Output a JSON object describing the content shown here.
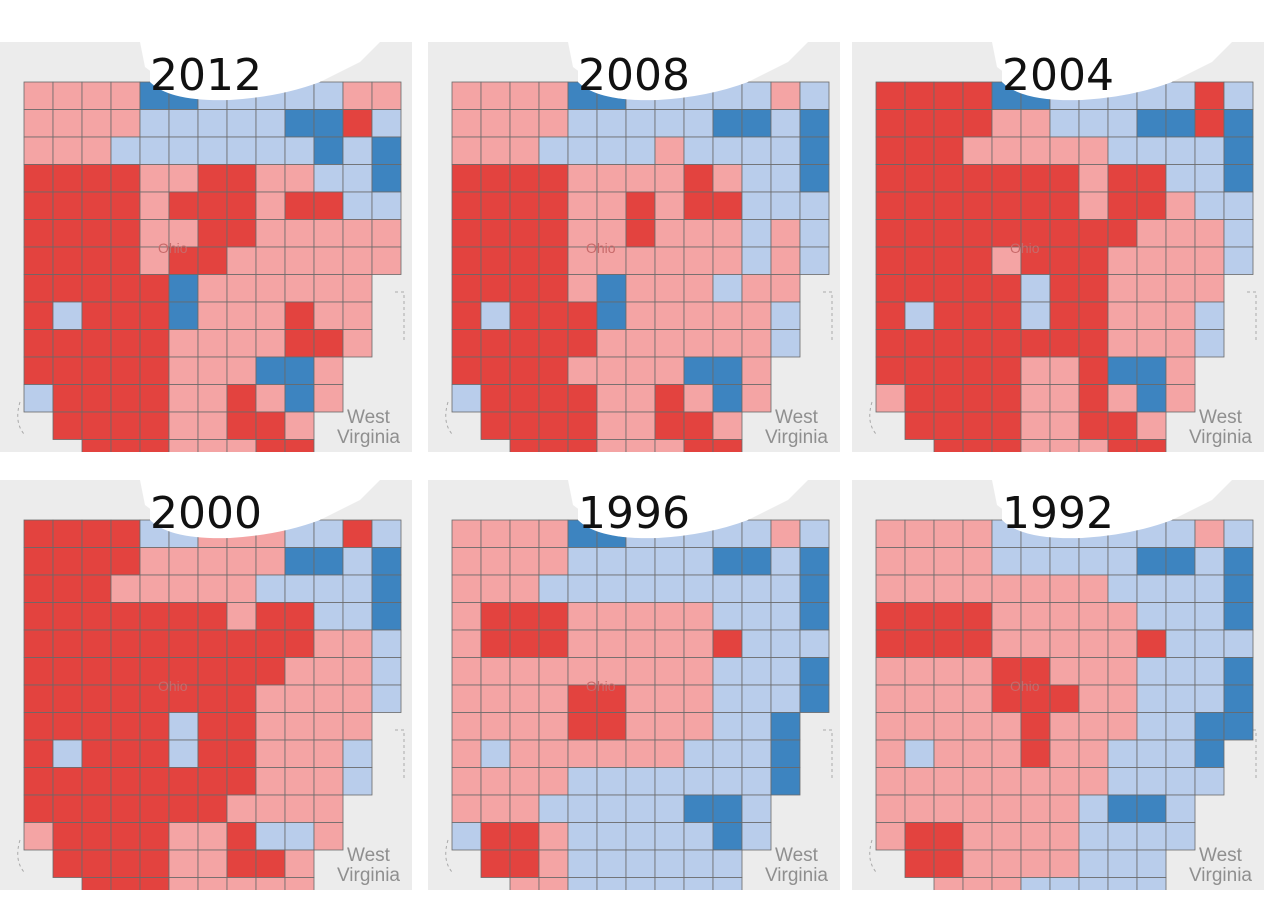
{
  "title": "",
  "legend_colors": {
    "strong_rep": "#e3433f",
    "lean_rep": "#f4a4a4",
    "lean_dem": "#b9cdeb",
    "strong_dem": "#3d84c0"
  },
  "maps": [
    {
      "year": "2012",
      "state_label": "Ohio",
      "neighbor_label": [
        "West",
        "Virginia"
      ],
      "grid": [
        "PPPPBBLLLLLPP",
        "PPPPLLLLLBBRL",
        "PPPLLLLLLLBLB",
        "RRRRPPRRPPLLB",
        "RRRRPRRRPRRLL",
        "RRRRPPRRPPPPP",
        "RRRRPRRPPPPPP",
        "RRRRRBPPPPPP.",
        "RLRRRBPPPRPP.",
        "RRRRRPPPPRRP.",
        "RRRRRPPPBBP..",
        "LRRRRPPRPBP..",
        ".RRRRPPRRP...",
        "..RRRPPPRR..."
      ]
    },
    {
      "year": "2008",
      "state_label": "Ohio",
      "neighbor_label": [
        "West",
        "Virginia"
      ],
      "grid": [
        "PPPPBBLLLLLPL",
        "PPPPLLLLLBBLB",
        "PPPLLLLPLLLLB",
        "RRRRPPPPRPLLB",
        "RRRRPPRPRRLLL",
        "RRRRPPRPPPLPL",
        "RRRRPPPPPPLPL",
        "RRRRPBPPPLPP.",
        "RLRRRBPPPPPL.",
        "RRRRRPPPPPPL.",
        "RRRRPPPPBBP..",
        "LRRRRPPRPBP..",
        ".RRRRPPRRP...",
        "..RRRPPPRR..."
      ]
    },
    {
      "year": "2004",
      "state_label": "Ohio",
      "neighbor_label": [
        "West",
        "Virginia"
      ],
      "grid": [
        "RRRRBBLLLLLRL",
        "RRRRPPLLLBBRB",
        "RRRPPPPPLLLLB",
        "RRRRRRRPRRLLB",
        "RRRRRRRPRRPLL",
        "RRRRRRRRRPPPL",
        "RRRRPRRRPPPPL",
        "RRRRRLRRPPPP.",
        "RLRRRLRRPPPL.",
        "RRRRRRRRPPPL.",
        "RRRRRPPRBBP..",
        "PRRRRPPRPBP..",
        ".RRRRPPRRP...",
        "..RRRPPPRR..."
      ]
    },
    {
      "year": "2000",
      "state_label": "Ohio",
      "neighbor_label": [
        "West",
        "Virginia"
      ],
      "grid": [
        "RRRRLLPPPLLRL",
        "RRRRPPPPPBBLB",
        "RRRPPPPPLLLLB",
        "RRRRRRRPRRLLB",
        "RRRRRRRRRRPPL",
        "RRRRRRRRRPPPL",
        "RRRRRRRRPPPPL",
        "RRRRRLRRPPPP.",
        "RLRRRLRRPPPL.",
        "RRRRRRRRPPPL.",
        "RRRRRRRPPPP..",
        "PRRRRPPRLLP..",
        ".RRRRPPRRP...",
        "..RRRPPPPP..."
      ]
    },
    {
      "year": "1996",
      "state_label": "Ohio",
      "neighbor_label": [
        "West",
        "Virginia"
      ],
      "grid": [
        "PPPPBBLLLLLPL",
        "PPPPLLLLLBBLB",
        "PPPLLLLLLLLLB",
        "PRRRPPPPPLLLB",
        "PRRRPPPPPRLLL",
        "PPPPPPPPPLLLB",
        "PPPPRRPPPLLLB",
        "PPPPRRPPPLLB.",
        "PLPPPPPPLLLB.",
        "PPPPLLLLLLLB.",
        "PPPLLLLLBBL..",
        "LRRPLLLLLBL..",
        ".RRPLLLLLL...",
        "..PPLLLLLL..."
      ]
    },
    {
      "year": "1992",
      "state_label": "Ohio",
      "neighbor_label": [
        "West",
        "Virginia"
      ],
      "grid": [
        "PPPPLLLLLLLPL",
        "PPPPLLLLLBBLB",
        "PPPPPPPPLLLLB",
        "RRRRPPPPPLLLB",
        "RRRRPPPPPRLLL",
        "PPPPRRPPPLLLB",
        "PPPPRRRPPLLLB",
        "PPPPPRPPPLLBB",
        "PLPPPRPPLLLB.",
        "PPPPPPPPLLLL.",
        "PPPPPPPLBBL..",
        "PRRPPPPLLLL..",
        ".RRPPPPLLL...",
        "..PPPLLLLL..."
      ]
    }
  ]
}
